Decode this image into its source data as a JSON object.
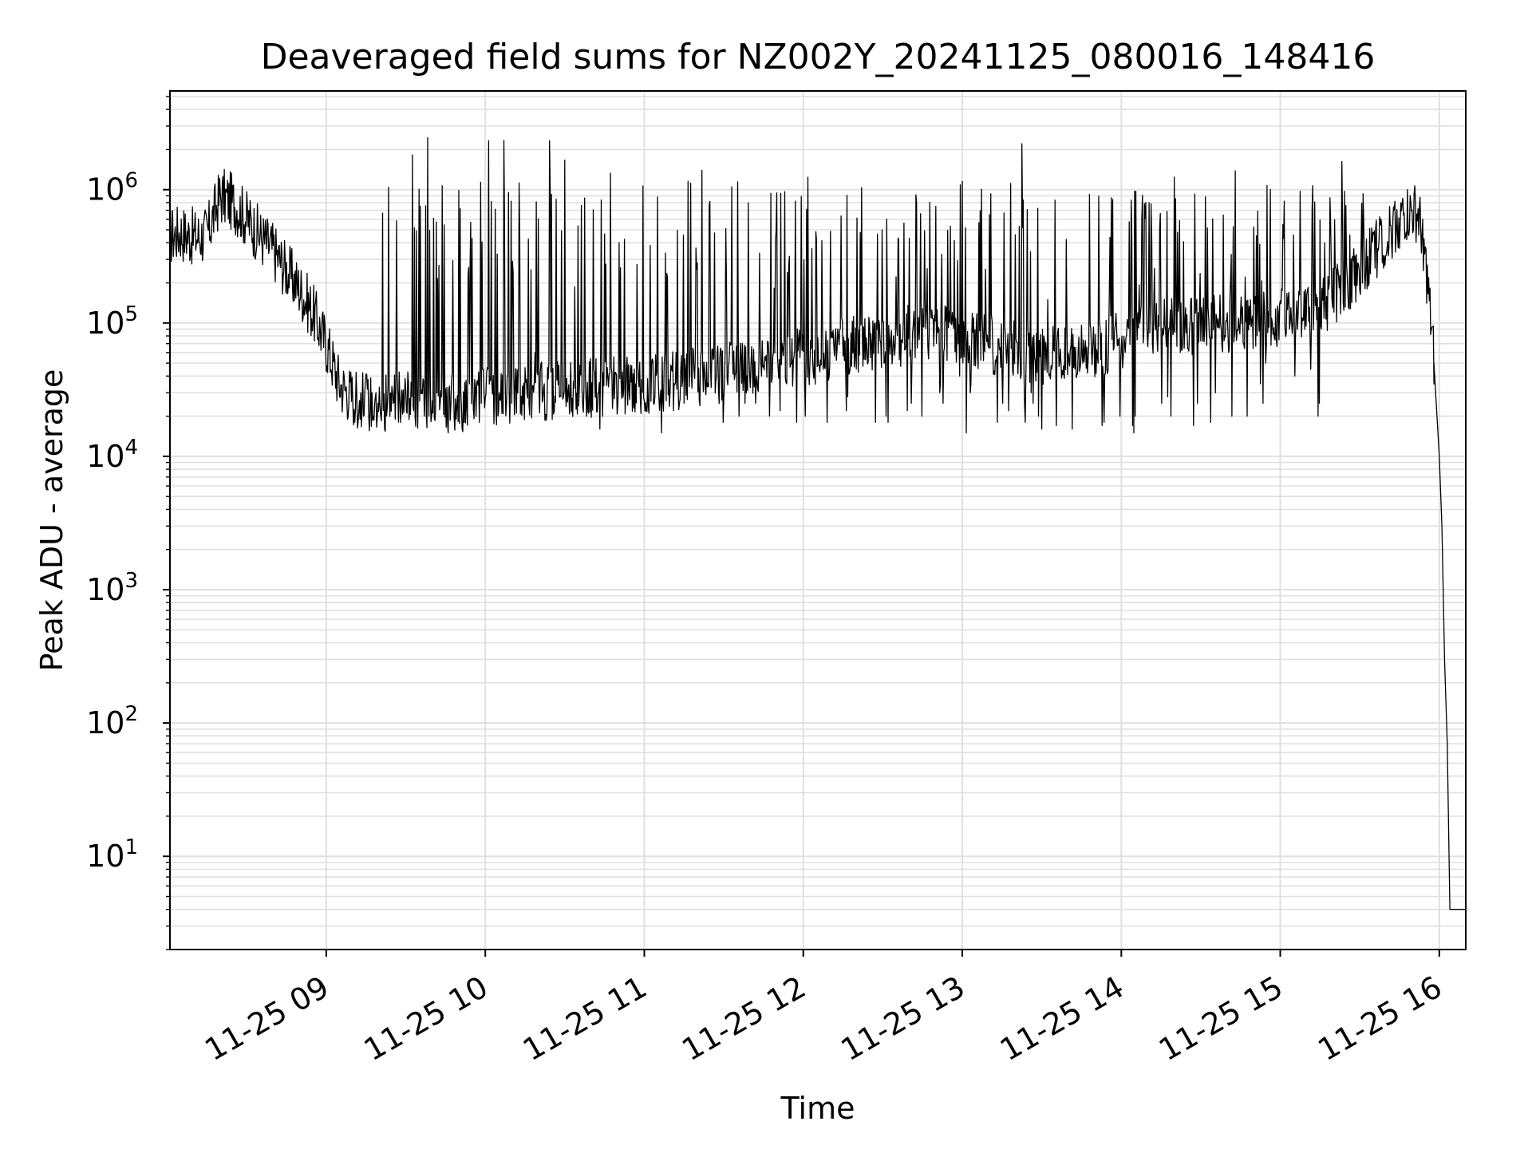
{
  "chart_data": {
    "type": "line",
    "title": "Deaveraged field sums for NZ002Y_20241125_080016_148416",
    "xlabel": "Time",
    "ylabel": "Peak ADU - average",
    "yscale": "log",
    "ylim": [
      2,
      5500000
    ],
    "xlim": [
      "11-25 08:01",
      "11-25 16:10"
    ],
    "grid": true,
    "line_color": "#000000",
    "grid_color": "#e0e0e0",
    "x_ticks": [
      {
        "label": "11-25 09",
        "time": "11-25 09:00"
      },
      {
        "label": "11-25 10",
        "time": "11-25 10:00"
      },
      {
        "label": "11-25 11",
        "time": "11-25 11:00"
      },
      {
        "label": "11-25 12",
        "time": "11-25 12:00"
      },
      {
        "label": "11-25 13",
        "time": "11-25 13:00"
      },
      {
        "label": "11-25 14",
        "time": "11-25 14:00"
      },
      {
        "label": "11-25 15",
        "time": "11-25 15:00"
      },
      {
        "label": "11-25 16",
        "time": "11-25 16:00"
      }
    ],
    "y_ticks": [
      {
        "base": "10",
        "exp": "1",
        "value": 10
      },
      {
        "base": "10",
        "exp": "2",
        "value": 100
      },
      {
        "base": "10",
        "exp": "3",
        "value": 1000
      },
      {
        "base": "10",
        "exp": "4",
        "value": 10000
      },
      {
        "base": "10",
        "exp": "5",
        "value": 100000
      },
      {
        "base": "10",
        "exp": "6",
        "value": 1000000
      }
    ],
    "series": [
      {
        "x": [
          "11-25 08:01",
          "11-25 08:05",
          "11-25 08:10",
          "11-25 08:15",
          "11-25 08:20",
          "11-25 08:25",
          "11-25 08:30",
          "11-25 08:35",
          "11-25 08:40",
          "11-25 08:45",
          "11-25 08:50",
          "11-25 08:55",
          "11-25 09:00",
          "11-25 09:05",
          "11-25 09:10",
          "11-25 09:15",
          "11-25 09:20",
          "11-25 09:30",
          "11-25 09:40",
          "11-25 09:50",
          "11-25 10:00",
          "11-25 10:15",
          "11-25 10:30",
          "11-25 10:45",
          "11-25 11:00",
          "11-25 11:15",
          "11-25 11:30",
          "11-25 11:45",
          "11-25 12:00",
          "11-25 12:15",
          "11-25 12:30",
          "11-25 12:45",
          "11-25 13:00",
          "11-25 13:15",
          "11-25 13:30",
          "11-25 13:45",
          "11-25 14:00",
          "11-25 14:15",
          "11-25 14:30",
          "11-25 14:45",
          "11-25 15:00",
          "11-25 15:15",
          "11-25 15:30",
          "11-25 15:40",
          "11-25 15:45",
          "11-25 15:50",
          "11-25 15:52",
          "11-25 15:54",
          "11-25 15:56",
          "11-25 15:58",
          "11-25 16:00",
          "11-25 16:01",
          "11-25 16:02",
          "11-25 16:03",
          "11-25 16:04",
          "11-25 16:10"
        ],
        "y": [
          450000,
          480000,
          440000,
          460000,
          900000,
          800000,
          600000,
          450000,
          350000,
          250000,
          180000,
          120000,
          70000,
          35000,
          28000,
          26000,
          25000,
          27000,
          26000,
          25000,
          28000,
          30000,
          32000,
          33000,
          35000,
          38000,
          42000,
          48000,
          55000,
          65000,
          75000,
          85000,
          80000,
          65000,
          55000,
          60000,
          75000,
          90000,
          95000,
          100000,
          110000,
          130000,
          250000,
          450000,
          600000,
          650000,
          620000,
          400000,
          150000,
          50000,
          10000,
          3000,
          300,
          70,
          4,
          4
        ],
        "spikes_low": [
          20000,
          22000,
          25000,
          18000,
          17000,
          16000,
          15000,
          18000,
          20000,
          22000,
          25000,
          28000,
          30000,
          35000,
          30000,
          25000,
          20000,
          25000,
          30000,
          40000,
          45000,
          50000,
          60000
        ],
        "spikes_high": [
          1200000,
          1100000,
          1000000,
          900000,
          1150000,
          1100000,
          1200000,
          1000000,
          1100000,
          1200000,
          1000000,
          600000,
          500000,
          300000,
          350000,
          400000,
          500000,
          700000,
          900000,
          1000000,
          1300000,
          2800000,
          1000000
        ]
      }
    ]
  }
}
